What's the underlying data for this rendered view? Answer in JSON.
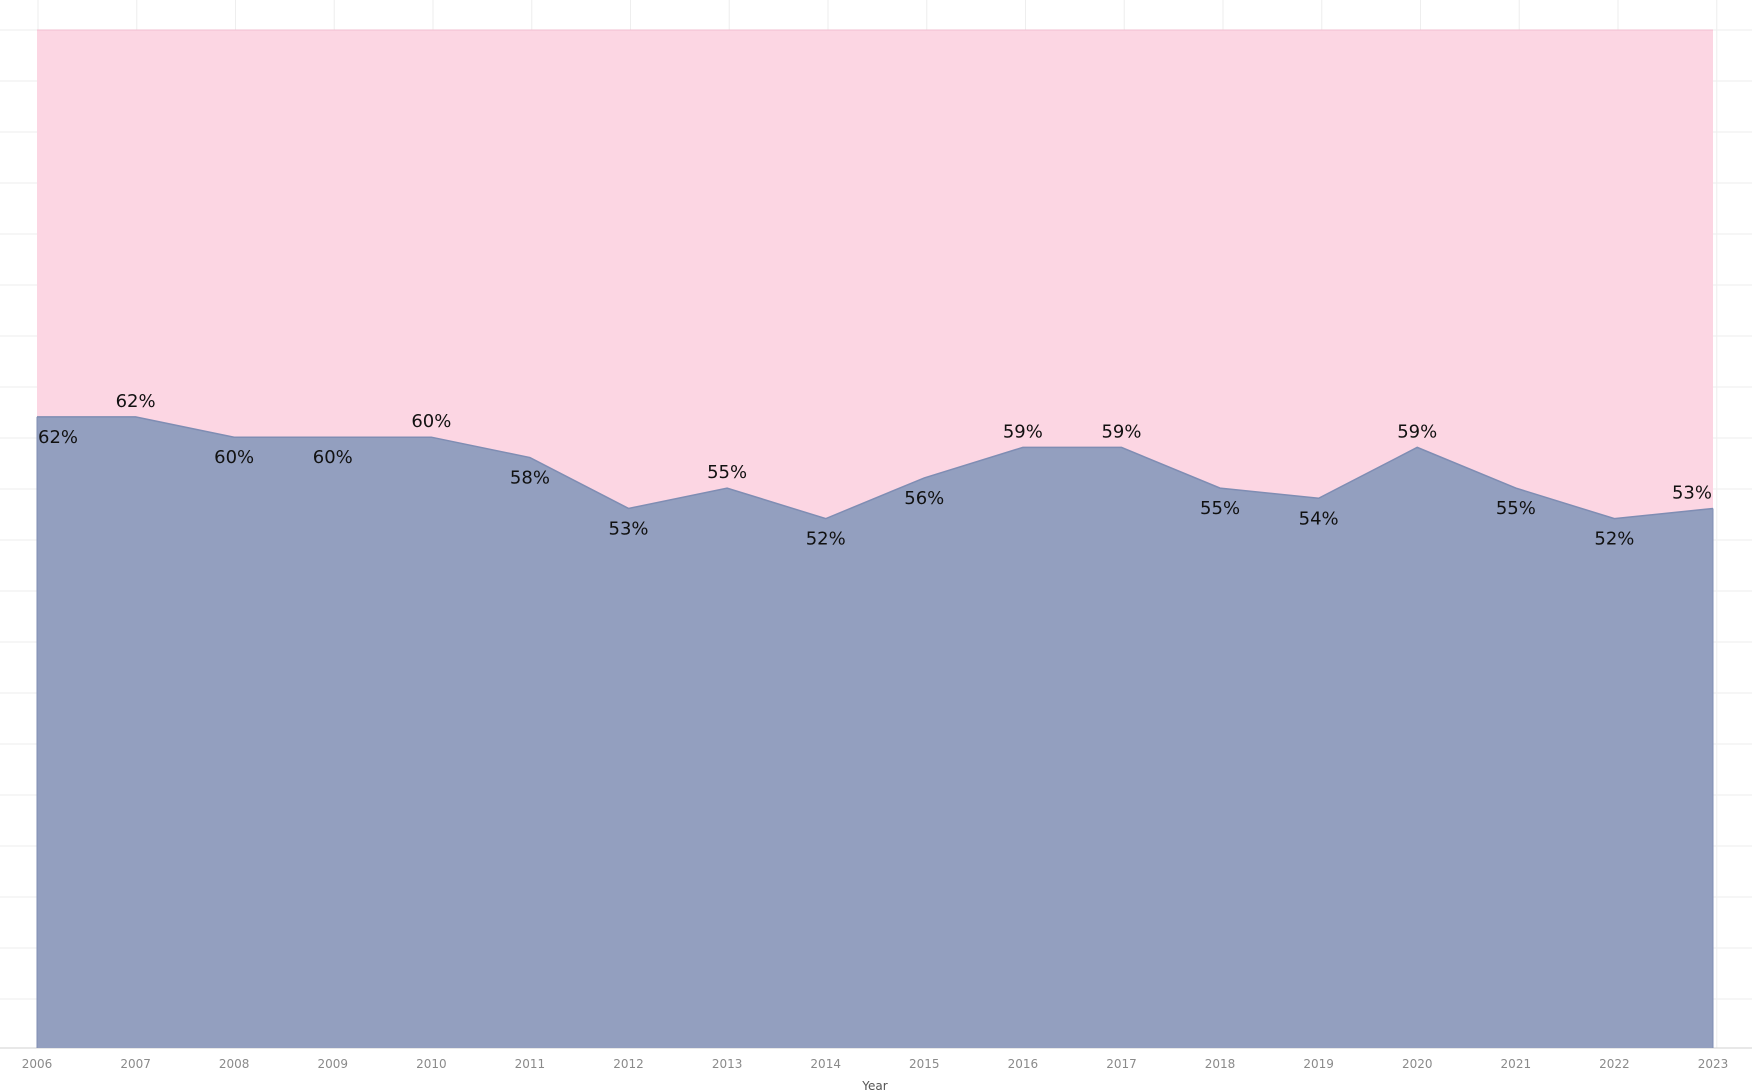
{
  "chart_data": {
    "type": "area",
    "stacked_percent": true,
    "x": [
      "2006",
      "2007",
      "2008",
      "2009",
      "2010",
      "2011",
      "2012",
      "2013",
      "2014",
      "2015",
      "2016",
      "2017",
      "2018",
      "2019",
      "2020",
      "2021",
      "2022",
      "2023"
    ],
    "series": [
      {
        "values": [
          62,
          62,
          60,
          60,
          60,
          58,
          53,
          55,
          52,
          56,
          59,
          59,
          55,
          54,
          59,
          55,
          52,
          53
        ],
        "color": "#939fbf"
      },
      {
        "values": [
          38,
          38,
          40,
          40,
          40,
          42,
          47,
          45,
          48,
          44,
          41,
          41,
          45,
          46,
          41,
          45,
          48,
          47
        ],
        "color": "#fcd6e3"
      }
    ],
    "data_labels": [
      "62%",
      "62%",
      "60%",
      "60%",
      "60%",
      "58%",
      "53%",
      "55%",
      "52%",
      "56%",
      "59%",
      "59%",
      "55%",
      "54%",
      "59%",
      "55%",
      "52%",
      "53%"
    ],
    "xlabel": "Year",
    "ylabel": "",
    "ylim": [
      0,
      100
    ],
    "grid": true,
    "legend": "none"
  }
}
